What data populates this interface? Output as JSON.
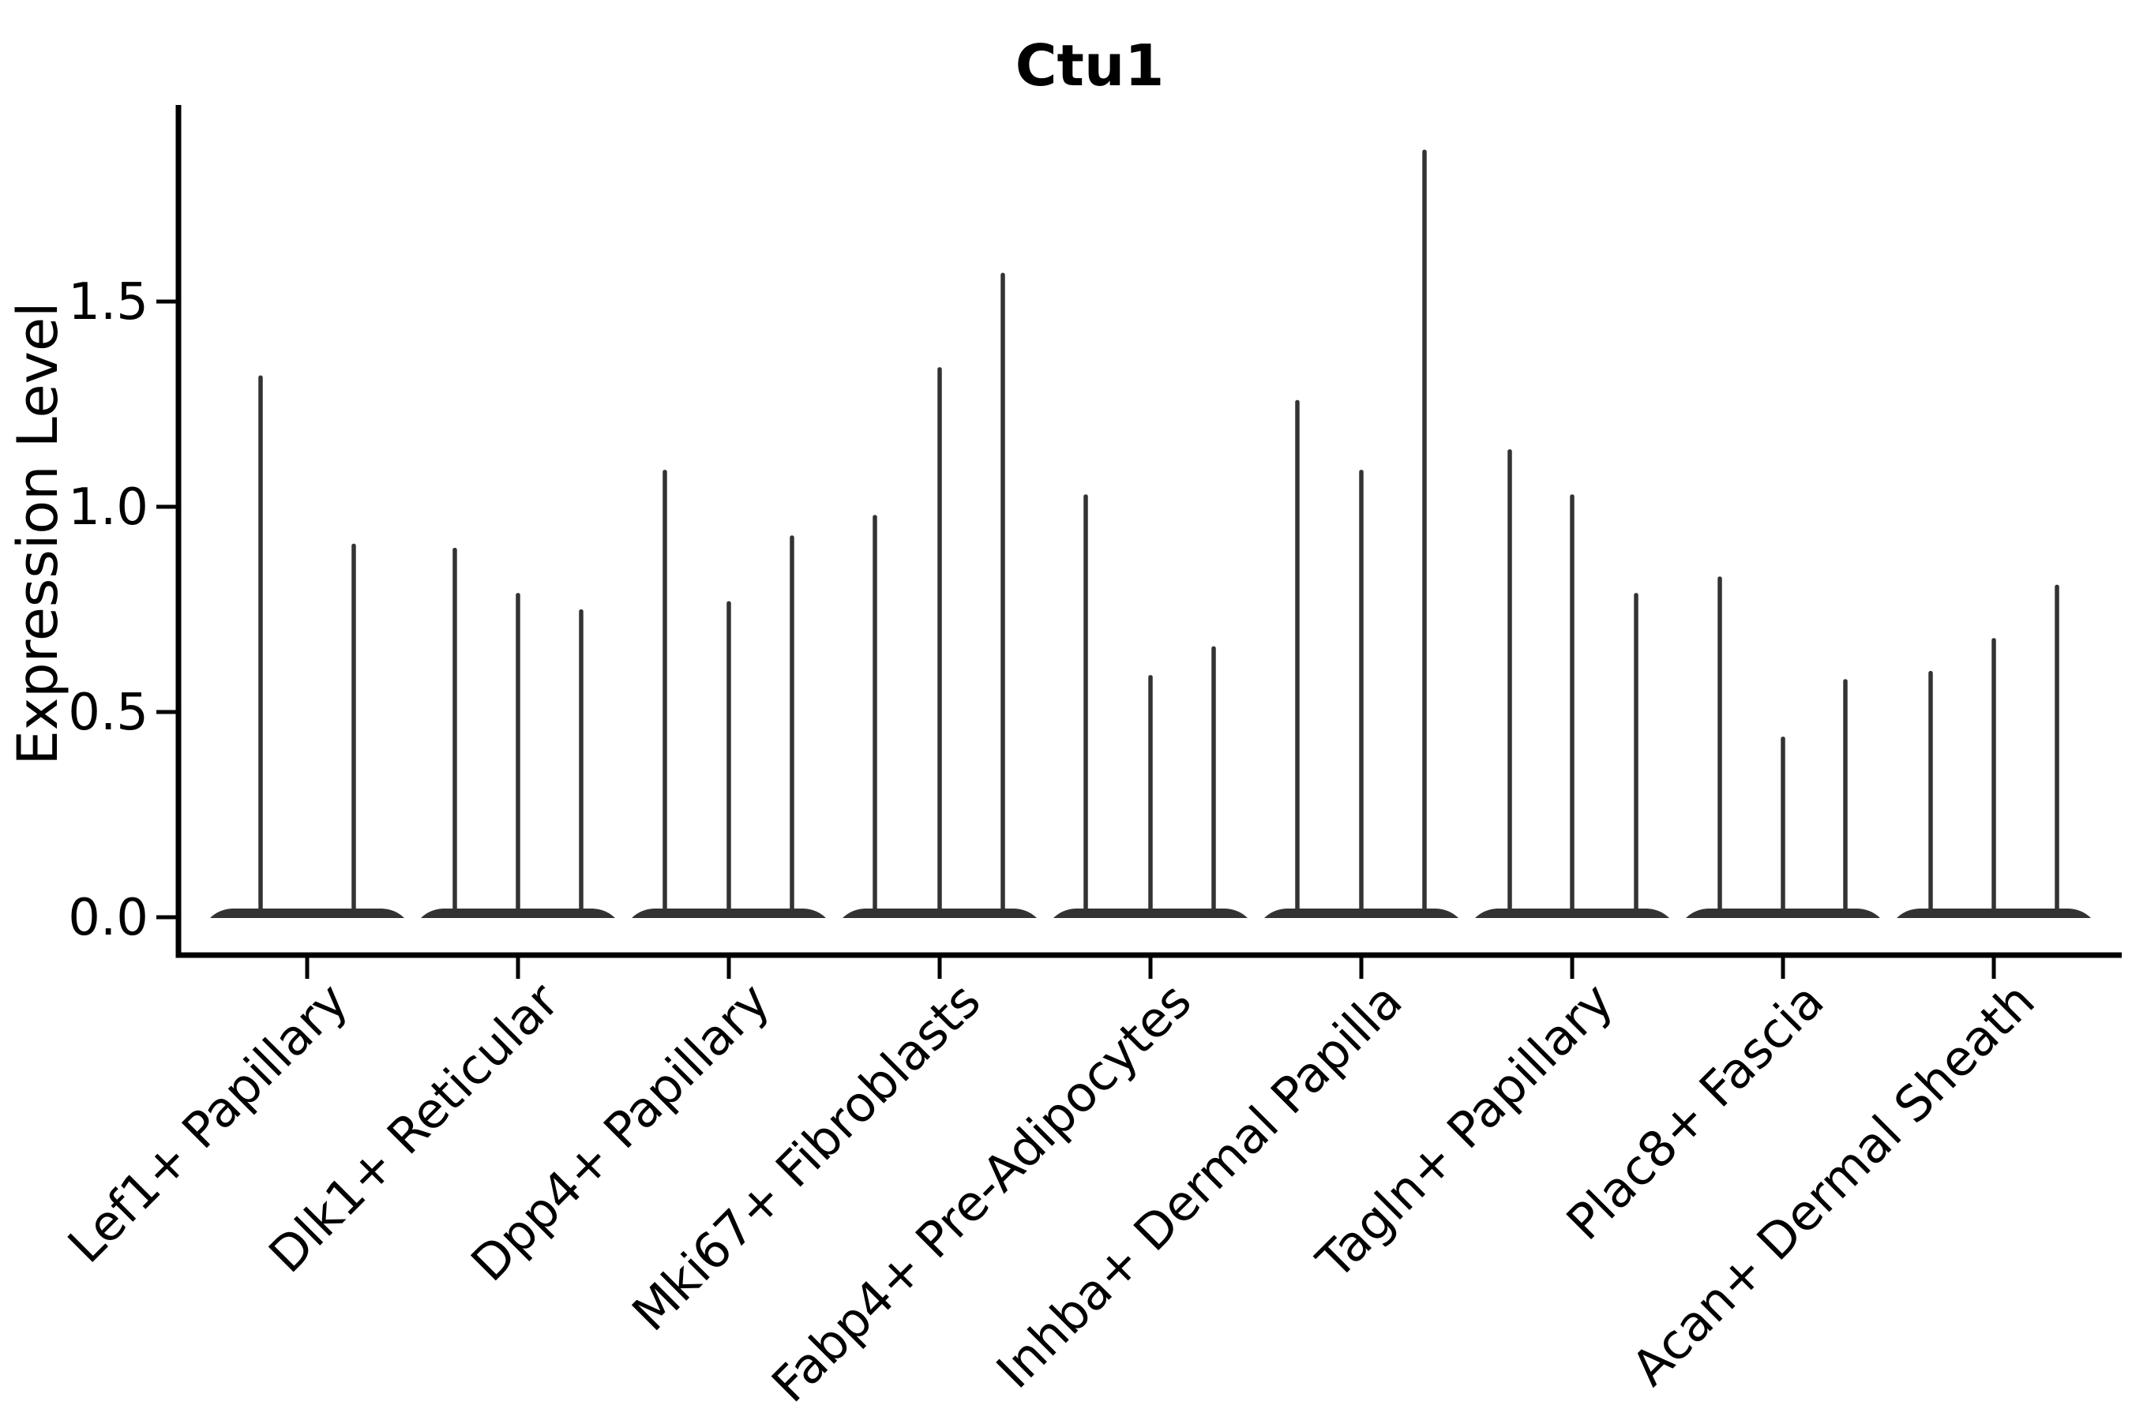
{
  "figure": {
    "title": "Ctu1",
    "ylabel": "Expression Level",
    "xlabel": ""
  },
  "chart_data": {
    "type": "violin",
    "title": "Ctu1",
    "xlabel": "",
    "ylabel": "Expression Level",
    "ylim": [
      -0.09,
      1.96
    ],
    "yticks": [
      "0.0",
      "0.5",
      "1.0",
      "1.5"
    ],
    "grid": false,
    "legend_position": "none",
    "categories": [
      "Lef1+ Papillary",
      "Dlk1+ Reticular",
      "Dpp4+ Papillary",
      "Mki67+ Fibroblasts",
      "Fabp4+ Pre-Adipocytes",
      "Inhba+ Dermal Papilla",
      "Tagln+ Papillary",
      "Plac8+ Fascia",
      "Acan+ Dermal Sheath"
    ],
    "violins": [
      {
        "category": "Lef1+ Papillary",
        "spike_offsets": [
          -59,
          59
        ],
        "spike_maxima": [
          1.32,
          0.91
        ]
      },
      {
        "category": "Dlk1+ Reticular",
        "spike_offsets": [
          -80,
          0,
          80
        ],
        "spike_maxima": [
          0.9,
          0.79,
          0.75
        ]
      },
      {
        "category": "Dpp4+ Papillary",
        "spike_offsets": [
          -81,
          0,
          80
        ],
        "spike_maxima": [
          1.09,
          0.77,
          0.93
        ]
      },
      {
        "category": "Mki67+ Fibroblasts",
        "spike_offsets": [
          -82,
          0,
          80
        ],
        "spike_maxima": [
          0.98,
          1.34,
          1.57
        ]
      },
      {
        "category": "Fabp4+ Pre-Adipocytes",
        "spike_offsets": [
          -82,
          0,
          80
        ],
        "spike_maxima": [
          1.03,
          0.59,
          0.66
        ]
      },
      {
        "category": "Inhba+ Dermal Papilla",
        "spike_offsets": [
          -81,
          0,
          80
        ],
        "spike_maxima": [
          1.26,
          1.09,
          1.87
        ]
      },
      {
        "category": "Tagln+ Papillary",
        "spike_offsets": [
          -79,
          0,
          81
        ],
        "spike_maxima": [
          1.14,
          1.03,
          0.79
        ]
      },
      {
        "category": "Plac8+ Fascia",
        "spike_offsets": [
          -80,
          0,
          79
        ],
        "spike_maxima": [
          0.83,
          0.44,
          0.58
        ]
      },
      {
        "category": "Acan+ Dermal Sheath",
        "spike_offsets": [
          -80,
          0,
          80
        ],
        "spike_maxima": [
          0.6,
          0.68,
          0.81
        ]
      }
    ],
    "baseline_value": 0.0,
    "colors": {
      "violin": "#333333",
      "axis": "#000000",
      "text": "#000000",
      "background": "#ffffff"
    }
  }
}
